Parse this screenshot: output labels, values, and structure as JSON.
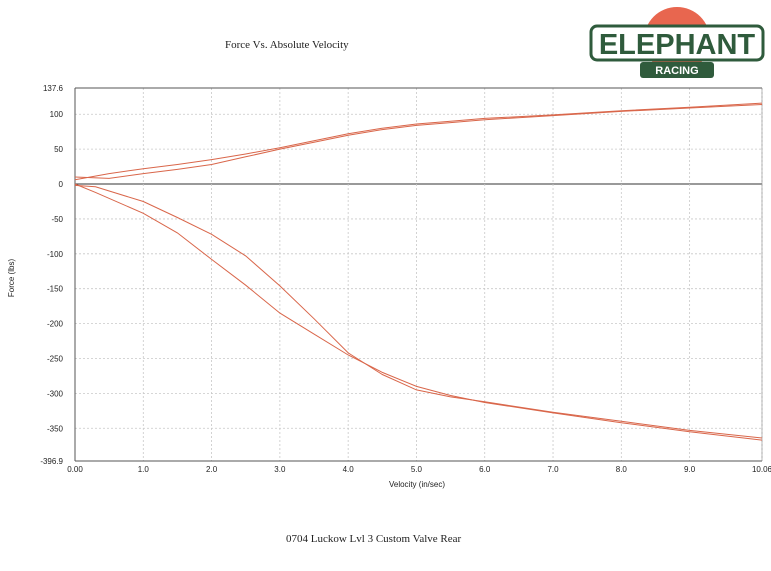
{
  "title": "Force Vs. Absolute Velocity",
  "caption": "0704 Luckow Lvl 3 Custom Valve Rear",
  "logo": {
    "main_text": "ELEPHANT",
    "sub_text": "RACING",
    "circle_color": "#e8664f",
    "text_color": "#2f5b3c"
  },
  "chart_data": {
    "type": "line",
    "title": "Force Vs. Absolute Velocity",
    "xlabel": "Velocity (in/sec)",
    "ylabel": "Force (lbs)",
    "xlim": [
      0,
      10.06
    ],
    "ylim": [
      -396.9,
      137.6
    ],
    "x_ticks": [
      "0.00",
      "1.0",
      "2.0",
      "3.0",
      "4.0",
      "5.0",
      "6.0",
      "7.0",
      "8.0",
      "9.0",
      "10.06"
    ],
    "y_ticks": [
      "137.6",
      "100",
      "50",
      "0",
      "-50",
      "-100",
      "-150",
      "-200",
      "-250",
      "-300",
      "-350",
      "-396.9"
    ],
    "grid": true,
    "series_color": "#d9664a",
    "series": [
      {
        "x": [
          0,
          0.5,
          1.0,
          1.5,
          2.0,
          2.5,
          3.0,
          3.5,
          4.0,
          4.5,
          5.0,
          5.5,
          6.0,
          7.0,
          8.0,
          9.0,
          10.06
        ],
        "y": [
          6,
          15,
          22,
          28,
          35,
          43,
          52,
          62,
          72,
          80,
          86,
          90,
          94,
          99,
          105,
          110,
          116
        ]
      },
      {
        "x": [
          0,
          0.5,
          1.0,
          1.5,
          2.0,
          2.5,
          3.0,
          3.5,
          4.0,
          4.5,
          5.0,
          5.5,
          6.0,
          7.0,
          8.0,
          9.0,
          10.06
        ],
        "y": [
          10,
          8,
          15,
          21,
          28,
          39,
          50,
          60,
          70,
          78,
          84,
          88,
          92,
          98,
          104,
          109,
          114
        ]
      },
      {
        "x": [
          0,
          0.3,
          1.0,
          1.5,
          2.0,
          2.5,
          3.0,
          3.5,
          4.0,
          4.5,
          5.0,
          5.5,
          6.0,
          7.0,
          8.0,
          9.0,
          10.06
        ],
        "y": [
          0,
          -12,
          -42,
          -70,
          -108,
          -145,
          -185,
          -215,
          -245,
          -270,
          -290,
          -303,
          -313,
          -328,
          -342,
          -355,
          -367
        ]
      },
      {
        "x": [
          0,
          0.3,
          1.0,
          1.5,
          2.0,
          2.5,
          3.0,
          3.5,
          4.0,
          4.5,
          5.0,
          5.5,
          6.0,
          7.0,
          8.0,
          9.0,
          10.06
        ],
        "y": [
          -2,
          -4,
          -25,
          -48,
          -72,
          -103,
          -146,
          -193,
          -242,
          -273,
          -295,
          -305,
          -312,
          -327,
          -340,
          -353,
          -364
        ]
      }
    ]
  }
}
